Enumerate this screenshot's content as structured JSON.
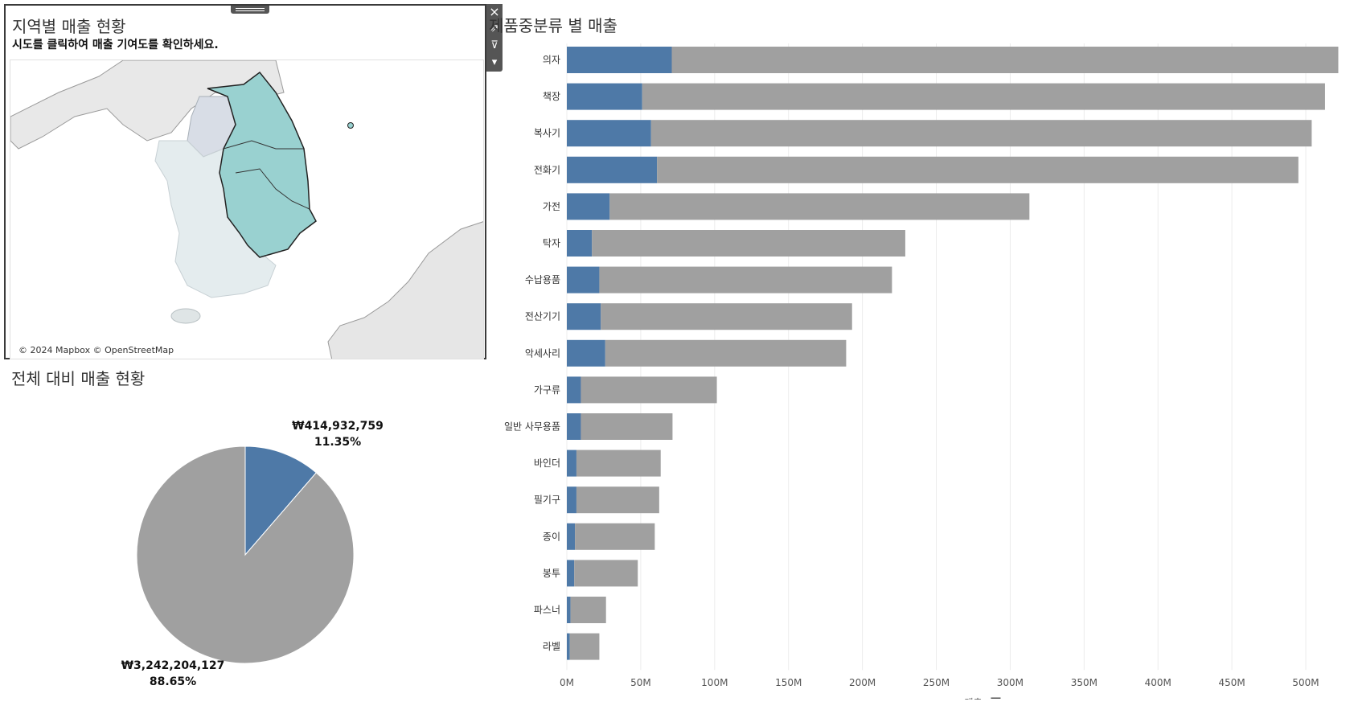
{
  "map": {
    "title": "지역별 매출 현황",
    "subtitle": "시도를 클릭하여 매출 기여도를 확인하세요.",
    "attribution": "© 2024 Mapbox © OpenStreetMap",
    "toolbar": {
      "close_icon": "×",
      "popout_icon": "⇗",
      "filter_icon": "⊽",
      "more_icon": "▾"
    }
  },
  "pie": {
    "title": "전체 대비 매출 현황",
    "selected_value": "₩414,932,759",
    "selected_pct": "11.35%",
    "rest_value": "₩3,242,204,127",
    "rest_pct": "88.65%"
  },
  "bar": {
    "title": "제품중분류 별 매출",
    "xlabel": "매출"
  },
  "colors": {
    "selected": "#4e79a7",
    "rest": "#a0a0a0",
    "region": "#99d1d0",
    "land": "#e4e8e9"
  },
  "chart_data": [
    {
      "type": "pie",
      "title": "전체 대비 매출 현황",
      "categories": [
        "selected",
        "rest"
      ],
      "values": [
        414932759,
        3242204127
      ],
      "labels": [
        "₩414,932,759 11.35%",
        "₩3,242,204,127 88.65%"
      ]
    },
    {
      "type": "bar",
      "orientation": "horizontal",
      "stacked": true,
      "title": "제품중분류 별 매출",
      "xlabel": "매출",
      "ylabel": "",
      "xlim": [
        0,
        525
      ],
      "x_unit": "M",
      "x_ticks": [
        "0M",
        "50M",
        "100M",
        "150M",
        "200M",
        "250M",
        "300M",
        "350M",
        "400M",
        "450M",
        "500M"
      ],
      "grid": true,
      "categories": [
        "의자",
        "책장",
        "복사기",
        "전화기",
        "가전",
        "탁자",
        "수납용품",
        "전산기기",
        "악세사리",
        "가구류",
        "일반 사무용품",
        "바인더",
        "필기구",
        "종이",
        "봉투",
        "파스너",
        "라벨"
      ],
      "series": [
        {
          "values": [
            71,
            51,
            57,
            61,
            29,
            17,
            22,
            23,
            26,
            9.5,
            9.5,
            6.5,
            6.5,
            5.5,
            5,
            2.5,
            2
          ]
        },
        {
          "values": [
            451,
            462,
            447,
            434,
            284,
            212,
            198,
            170,
            163,
            92,
            62,
            57,
            56,
            54,
            43,
            24,
            20
          ]
        }
      ]
    }
  ]
}
